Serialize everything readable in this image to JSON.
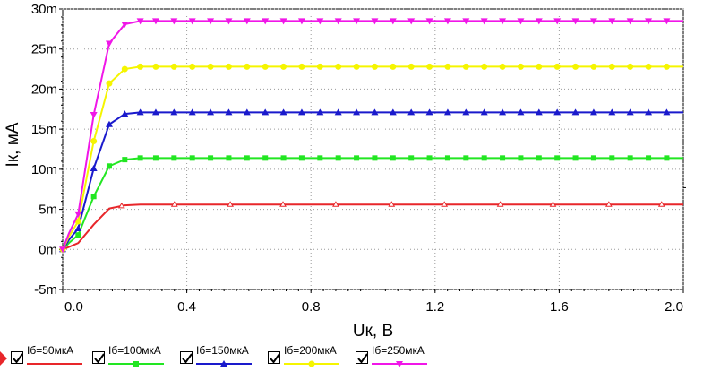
{
  "chart_data": {
    "type": "line",
    "xlabel": "Uк, В",
    "ylabel": "Iк, мА",
    "xlim": [
      0,
      2.0
    ],
    "ylim": [
      -0.005,
      0.03
    ],
    "x_ticks": [
      "0.0",
      "0.4",
      "0.8",
      "1.2",
      "1.6",
      "2.0"
    ],
    "x_tick_values": [
      0,
      0.4,
      0.8,
      1.2,
      1.6,
      2.0
    ],
    "y_ticks": [
      "-5m",
      "0m",
      "5m",
      "10m",
      "15m",
      "20m",
      "25m",
      "30m"
    ],
    "y_tick_values": [
      -0.005,
      0,
      0.005,
      0.01,
      0.015,
      0.02,
      0.025,
      0.03
    ],
    "grid": true,
    "legend_position": "bottom",
    "series": [
      {
        "name": "Iб=50мкА",
        "color": "#e8262a",
        "marker": "triangle-up-open",
        "x": [
          0,
          0.02,
          0.05,
          0.1,
          0.15,
          0.2,
          0.25,
          0.3,
          0.5,
          1.0,
          1.5,
          2.0
        ],
        "y": [
          0,
          0.0003,
          0.0008,
          0.0031,
          0.0051,
          0.0055,
          0.0056,
          0.0056,
          0.0056,
          0.0056,
          0.0056,
          0.0056
        ],
        "marker_x": [
          0.19,
          0.36,
          0.54,
          0.71,
          0.88,
          1.06,
          1.23,
          1.41,
          1.58,
          1.76,
          1.93
        ]
      },
      {
        "name": "Iб=100мкА",
        "color": "#22e622",
        "marker": "square",
        "x": [
          0,
          0.02,
          0.05,
          0.1,
          0.15,
          0.2,
          0.25,
          0.3,
          0.5,
          1.0,
          1.5,
          2.0
        ],
        "y": [
          0,
          0.0008,
          0.0018,
          0.0066,
          0.0104,
          0.0112,
          0.0114,
          0.0114,
          0.0114,
          0.0114,
          0.0114,
          0.0114
        ]
      },
      {
        "name": "Iб=150мкА",
        "color": "#1a1acc",
        "marker": "triangle-up",
        "x": [
          0,
          0.02,
          0.05,
          0.1,
          0.15,
          0.2,
          0.25,
          0.3,
          0.5,
          1.0,
          1.5,
          2.0
        ],
        "y": [
          0,
          0.0012,
          0.0026,
          0.0101,
          0.0156,
          0.0169,
          0.0171,
          0.0171,
          0.0171,
          0.0171,
          0.0171,
          0.0171
        ]
      },
      {
        "name": "Iб=200мкА",
        "color": "#f5f500",
        "marker": "circle",
        "x": [
          0,
          0.02,
          0.05,
          0.1,
          0.15,
          0.2,
          0.25,
          0.3,
          0.5,
          1.0,
          1.5,
          2.0
        ],
        "y": [
          0,
          0.0016,
          0.0035,
          0.0135,
          0.0207,
          0.0225,
          0.0228,
          0.0228,
          0.0228,
          0.0228,
          0.0228,
          0.0228
        ]
      },
      {
        "name": "Iб=250мкА",
        "color": "#f016e8",
        "marker": "triangle-down",
        "x": [
          0,
          0.02,
          0.05,
          0.1,
          0.15,
          0.2,
          0.25,
          0.3,
          0.5,
          1.0,
          1.5,
          2.0
        ],
        "y": [
          0,
          0.002,
          0.0044,
          0.0168,
          0.0257,
          0.0281,
          0.0285,
          0.0285,
          0.0285,
          0.0285,
          0.0285,
          0.0285
        ]
      }
    ]
  },
  "legend": {
    "items": [
      {
        "label": "Iб=50мкА",
        "checked": true
      },
      {
        "label": "Iб=100мкА",
        "checked": true
      },
      {
        "label": "Iб=150мкА",
        "checked": true
      },
      {
        "label": "Iб=200мкА",
        "checked": true
      },
      {
        "label": "Iб=250мкА",
        "checked": true
      }
    ]
  }
}
